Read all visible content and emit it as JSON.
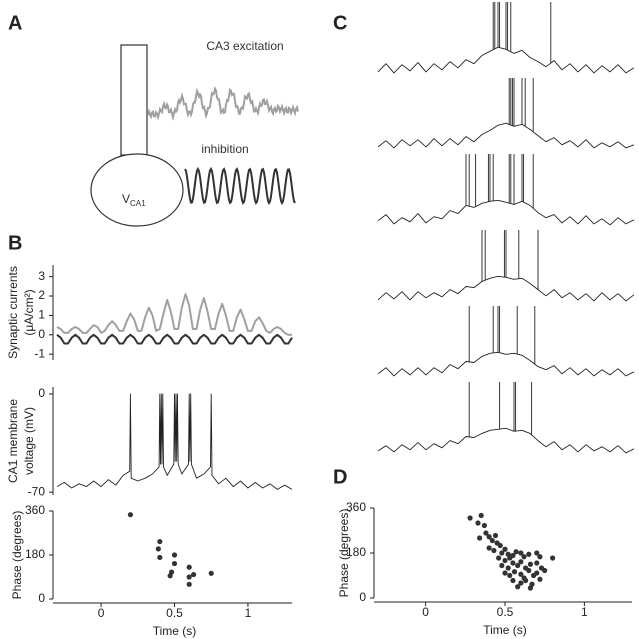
{
  "panel_labels": [
    "A",
    "B",
    "C",
    "D"
  ],
  "diagram": {
    "excitation_label": "CA3 excitation",
    "inhibition_label": "inhibition",
    "cell_label": "V",
    "cell_label_sub": "CA1"
  },
  "chart_data": [
    {
      "type": "line",
      "ylabel": [
        "Synaptic currents",
        "(μA/cm²)"
      ],
      "xlim": [
        -0.3,
        1.3
      ],
      "ylim": [
        -1.3,
        3.6
      ],
      "yticks": [
        -1,
        0,
        1,
        2,
        3
      ],
      "x": [
        -0.3,
        -0.275,
        -0.25,
        -0.225,
        -0.2,
        -0.175,
        -0.15,
        -0.125,
        -0.1,
        -0.075,
        -0.05,
        -0.025,
        0,
        0.025,
        0.05,
        0.075,
        0.1,
        0.125,
        0.15,
        0.175,
        0.2,
        0.225,
        0.25,
        0.275,
        0.3,
        0.325,
        0.35,
        0.375,
        0.4,
        0.425,
        0.45,
        0.475,
        0.5,
        0.525,
        0.55,
        0.575,
        0.6,
        0.625,
        0.65,
        0.675,
        0.7,
        0.725,
        0.75,
        0.775,
        0.8,
        0.825,
        0.85,
        0.875,
        0.9,
        0.925,
        0.95,
        0.975,
        1,
        1.025,
        1.05,
        1.075,
        1.1,
        1.125,
        1.15,
        1.175,
        1.2,
        1.225,
        1.25,
        1.275,
        1.3
      ],
      "series": [
        {
          "color": "#a0a0a0",
          "values": [
            0.4,
            0.3,
            0.1,
            0.1,
            0.3,
            0.4,
            0.3,
            0.1,
            0.1,
            0.3,
            0.5,
            0.4,
            0.1,
            0.2,
            0.5,
            0.7,
            0.5,
            0.2,
            0.2,
            0.7,
            1.1,
            0.8,
            0.2,
            0.2,
            0.9,
            1.4,
            1.0,
            0.2,
            0.3,
            1.1,
            1.8,
            1.2,
            0.3,
            0.3,
            1.4,
            2.1,
            1.5,
            0.3,
            0.3,
            1.3,
            1.9,
            1.2,
            0.3,
            0.3,
            1.1,
            1.6,
            1.0,
            0.2,
            0.2,
            0.9,
            1.3,
            0.8,
            0.2,
            0.2,
            0.7,
            0.9,
            0.6,
            0.2,
            0.1,
            0.3,
            0.4,
            0.3,
            0.1,
            0,
            0
          ]
        },
        {
          "color": "#333333",
          "values": [
            0,
            -0.15,
            -0.45,
            -0.45,
            -0.15,
            0,
            -0.15,
            -0.45,
            -0.45,
            -0.15,
            0,
            -0.15,
            -0.45,
            -0.45,
            -0.15,
            0,
            -0.15,
            -0.45,
            -0.45,
            -0.15,
            0,
            -0.15,
            -0.45,
            -0.45,
            -0.15,
            0,
            -0.15,
            -0.45,
            -0.45,
            -0.15,
            0,
            -0.15,
            -0.45,
            -0.45,
            -0.15,
            0,
            -0.15,
            -0.45,
            -0.45,
            -0.15,
            0,
            -0.15,
            -0.45,
            -0.45,
            -0.15,
            0,
            -0.15,
            -0.45,
            -0.45,
            -0.15,
            0,
            -0.15,
            -0.45,
            -0.45,
            -0.15,
            0,
            -0.15,
            -0.45,
            -0.45,
            -0.15,
            0,
            -0.15,
            -0.45,
            -0.45,
            -0.15
          ]
        }
      ]
    },
    {
      "type": "line",
      "ylabel": [
        "CA1 membrane",
        "voltage (mV)"
      ],
      "color": "#222222",
      "xlim": [
        -0.3,
        1.3
      ],
      "ylim": [
        -72,
        5
      ],
      "yticks": [
        -70,
        0
      ],
      "x": [
        -0.3,
        -0.25,
        -0.2,
        -0.15,
        -0.1,
        -0.05,
        0,
        0.05,
        0.1,
        0.15,
        0.195,
        0.2,
        0.205,
        0.25,
        0.3,
        0.35,
        0.395,
        0.4,
        0.405,
        0.41,
        0.415,
        0.42,
        0.425,
        0.45,
        0.495,
        0.5,
        0.505,
        0.51,
        0.515,
        0.52,
        0.525,
        0.55,
        0.595,
        0.6,
        0.605,
        0.61,
        0.615,
        0.65,
        0.7,
        0.745,
        0.75,
        0.755,
        0.8,
        0.85,
        0.9,
        0.95,
        1.0,
        1.05,
        1.1,
        1.15,
        1.2,
        1.25,
        1.3
      ],
      "values": [
        -66,
        -63,
        -67,
        -64,
        -66,
        -62,
        -66,
        -61,
        -65,
        -58,
        -55,
        0,
        -60,
        -62,
        -60,
        -57,
        -52,
        0,
        -50,
        0,
        -50,
        0,
        -52,
        -58,
        -50,
        0,
        -48,
        0,
        -48,
        0,
        -50,
        -57,
        -50,
        0,
        -48,
        0,
        -50,
        -60,
        -57,
        -52,
        0,
        -58,
        -64,
        -60,
        -66,
        -62,
        -67,
        -63,
        -67,
        -64,
        -68,
        -65,
        -68
      ]
    },
    {
      "type": "scatter",
      "ylabel": "Phase (degrees)",
      "xlabel": "Time (s)",
      "color": "#333333",
      "xlim": [
        -0.3,
        1.3
      ],
      "ylim": [
        0,
        360
      ],
      "xticks": [
        0,
        0.5,
        1
      ],
      "yticks": [
        0,
        180,
        360
      ],
      "x": [
        0.2,
        0.4,
        0.39,
        0.4,
        0.5,
        0.5,
        0.48,
        0.47,
        0.6,
        0.6,
        0.63,
        0.6,
        0.75
      ],
      "values": [
        345,
        235,
        205,
        170,
        180,
        145,
        110,
        95,
        130,
        90,
        100,
        60,
        105
      ]
    },
    {
      "type": "traces",
      "color": "#222222",
      "xlim": [
        -0.3,
        1.3
      ],
      "ylim": [
        -72,
        0
      ],
      "x": [
        -0.3,
        -0.25,
        -0.2,
        -0.15,
        -0.1,
        -0.05,
        0,
        0.05,
        0.1,
        0.15,
        0.2,
        0.25,
        0.3,
        0.35,
        0.4,
        0.45,
        0.5,
        0.55,
        0.6,
        0.65,
        0.7,
        0.75,
        0.8,
        0.85,
        0.9,
        0.95,
        1,
        1.05,
        1.1,
        1.15,
        1.2,
        1.25,
        1.3
      ],
      "series": [
        {
          "values": [
            -68,
            -60,
            -69,
            -61,
            -67,
            -59,
            -68,
            -60,
            -66,
            -58,
            -64,
            -56,
            -60,
            -52,
            -48,
            -44,
            -46,
            -50,
            -47,
            -54,
            -58,
            -63,
            -57,
            -66,
            -60,
            -68,
            -61,
            -69,
            -62,
            -68,
            -61,
            -69,
            -64
          ],
          "spikes": [
            0.42,
            0.43,
            0.45,
            0.46,
            0.5,
            0.51,
            0.53,
            0.78
          ]
        },
        {
          "values": [
            -67,
            -61,
            -68,
            -60,
            -66,
            -60,
            -67,
            -59,
            -66,
            -59,
            -65,
            -57,
            -62,
            -55,
            -51,
            -46,
            -44,
            -47,
            -45,
            -50,
            -56,
            -62,
            -58,
            -65,
            -61,
            -67,
            -60,
            -68,
            -63,
            -67,
            -62,
            -68,
            -65
          ],
          "spikes": [
            0.52,
            0.53,
            0.54,
            0.55,
            0.6,
            0.62,
            0.67
          ]
        },
        {
          "values": [
            -65,
            -59,
            -68,
            -62,
            -66,
            -58,
            -67,
            -61,
            -63,
            -55,
            -58,
            -50,
            -52,
            -48,
            -46,
            -45,
            -47,
            -49,
            -46,
            -50,
            -57,
            -62,
            -59,
            -67,
            -61,
            -68,
            -60,
            -68,
            -63,
            -69,
            -62,
            -68,
            -64
          ],
          "spikes": [
            0.25,
            0.27,
            0.31,
            0.39,
            0.4,
            0.42,
            0.52,
            0.53,
            0.55,
            0.6,
            0.61,
            0.67
          ]
        },
        {
          "values": [
            -68,
            -61,
            -67,
            -60,
            -68,
            -60,
            -66,
            -61,
            -65,
            -58,
            -62,
            -55,
            -56,
            -50,
            -47,
            -45,
            -46,
            -48,
            -47,
            -52,
            -58,
            -64,
            -58,
            -66,
            -61,
            -68,
            -62,
            -69,
            -61,
            -68,
            -62,
            -69,
            -63
          ],
          "spikes": [
            0.35,
            0.37,
            0.49,
            0.5,
            0.58,
            0.7
          ]
        },
        {
          "values": [
            -66,
            -60,
            -68,
            -61,
            -67,
            -60,
            -67,
            -60,
            -65,
            -57,
            -61,
            -54,
            -55,
            -49,
            -46,
            -45,
            -47,
            -46,
            -48,
            -53,
            -59,
            -62,
            -58,
            -66,
            -60,
            -67,
            -61,
            -68,
            -62,
            -67,
            -61,
            -68,
            -64
          ],
          "spikes": [
            0.27,
            0.42,
            0.45,
            0.46,
            0.57,
            0.68
          ]
        },
        {
          "values": [
            -67,
            -62,
            -68,
            -61,
            -66,
            -59,
            -66,
            -60,
            -64,
            -57,
            -60,
            -53,
            -54,
            -50,
            -47,
            -46,
            -45,
            -48,
            -47,
            -50,
            -57,
            -63,
            -58,
            -66,
            -61,
            -68,
            -61,
            -67,
            -63,
            -68,
            -62,
            -69,
            -65
          ],
          "spikes": [
            0.27,
            0.46,
            0.55,
            0.56,
            0.66
          ]
        }
      ]
    },
    {
      "type": "scatter",
      "ylabel": "Phase (degrees)",
      "xlabel": "Time (s)",
      "color": "#333333",
      "xlim": [
        -0.3,
        1.3
      ],
      "ylim": [
        0,
        360
      ],
      "xticks": [
        0,
        0.5,
        1
      ],
      "yticks": [
        0,
        180,
        360
      ],
      "x": [
        0.28,
        0.33,
        0.35,
        0.37,
        0.38,
        0.34,
        0.4,
        0.42,
        0.44,
        0.45,
        0.4,
        0.43,
        0.47,
        0.48,
        0.5,
        0.52,
        0.46,
        0.5,
        0.53,
        0.55,
        0.57,
        0.6,
        0.62,
        0.65,
        0.7,
        0.72,
        0.8,
        0.48,
        0.52,
        0.55,
        0.58,
        0.6,
        0.63,
        0.66,
        0.7,
        0.73,
        0.5,
        0.53,
        0.56,
        0.6,
        0.62,
        0.65,
        0.68,
        0.7,
        0.75,
        0.55,
        0.6,
        0.63,
        0.67,
        0.72,
        0.58,
        0.66
      ],
      "values": [
        320,
        300,
        330,
        290,
        260,
        240,
        245,
        230,
        250,
        220,
        200,
        190,
        210,
        180,
        195,
        175,
        160,
        150,
        160,
        170,
        185,
        180,
        165,
        175,
        180,
        165,
        160,
        130,
        120,
        140,
        130,
        145,
        120,
        135,
        140,
        120,
        100,
        90,
        105,
        95,
        80,
        110,
        90,
        100,
        110,
        70,
        60,
        70,
        55,
        75,
        45,
        40
      ]
    }
  ]
}
